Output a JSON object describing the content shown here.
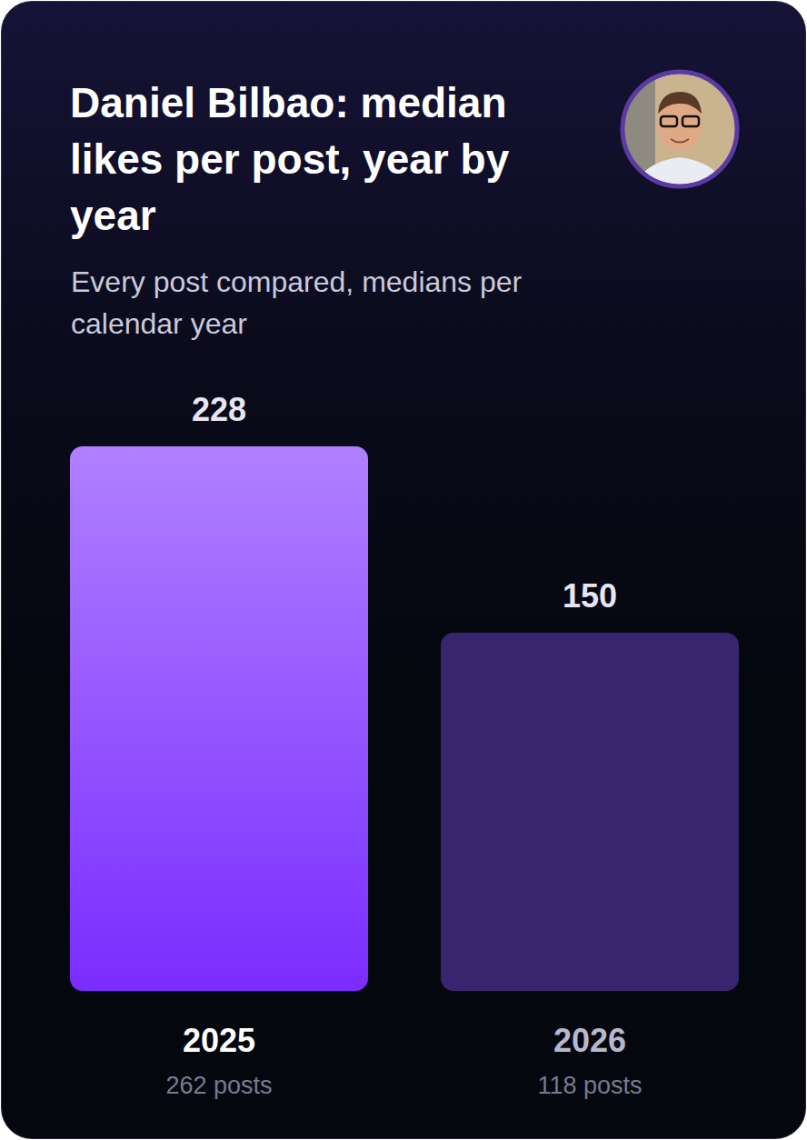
{
  "chart_data": {
    "type": "bar",
    "title": "Daniel Bilbao: median likes per post, year by year",
    "subtitle": "Every post compared, medians per calendar year",
    "categories": [
      "2025",
      "2026"
    ],
    "values": [
      228,
      150
    ],
    "category_notes": [
      "262 posts",
      "118 posts"
    ],
    "colors": [
      "#7b2cff",
      "#37266f"
    ],
    "ylim": [
      0,
      228
    ],
    "data_labels": true,
    "tick_labels": "x",
    "grid": false
  }
}
